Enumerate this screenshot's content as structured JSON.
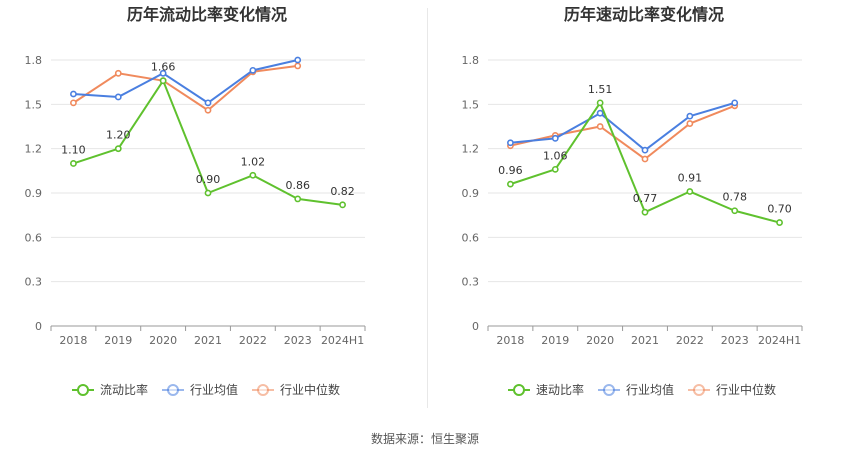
{
  "colors": {
    "current": "#5fc12e",
    "industry_avg": "#4a7fe0",
    "industry_median": "#f08a5d",
    "axis": "#666666",
    "grid": "#e6e6e6"
  },
  "legend": {
    "industry_avg": "行业均值",
    "industry_median": "行业中位数"
  },
  "source": "数据来源：恒生聚源",
  "chart_data": [
    {
      "type": "line",
      "title": "历年流动比率变化情况",
      "categories": [
        "2018",
        "2019",
        "2020",
        "2021",
        "2022",
        "2023",
        "2024H1"
      ],
      "yticks": [
        "0",
        "0.3",
        "0.6",
        "0.9",
        "1.2",
        "1.5",
        "1.8"
      ],
      "ylim": [
        0,
        1.8
      ],
      "grid": true,
      "legend_position": "bottom",
      "series": [
        {
          "name": "流动比率",
          "key": "current",
          "values": [
            1.1,
            1.2,
            1.66,
            0.9,
            1.02,
            0.86,
            0.82
          ],
          "labels": [
            "1.10",
            "1.20",
            "1.66",
            "0.90",
            "1.02",
            "0.86",
            "0.82"
          ]
        },
        {
          "name": "行业均值",
          "key": "industry_avg",
          "values": [
            1.57,
            1.55,
            1.71,
            1.51,
            1.73,
            1.8,
            null
          ]
        },
        {
          "name": "行业中位数",
          "key": "industry_median",
          "values": [
            1.51,
            1.71,
            1.66,
            1.46,
            1.72,
            1.76,
            null
          ]
        }
      ]
    },
    {
      "type": "line",
      "title": "历年速动比率变化情况",
      "categories": [
        "2018",
        "2019",
        "2020",
        "2021",
        "2022",
        "2023",
        "2024H1"
      ],
      "yticks": [
        "0",
        "0.3",
        "0.6",
        "0.9",
        "1.2",
        "1.5",
        "1.8"
      ],
      "ylim": [
        0,
        1.8
      ],
      "grid": true,
      "legend_position": "bottom",
      "series": [
        {
          "name": "速动比率",
          "key": "current",
          "values": [
            0.96,
            1.06,
            1.51,
            0.77,
            0.91,
            0.78,
            0.7
          ],
          "labels": [
            "0.96",
            "1.06",
            "1.51",
            "0.77",
            "0.91",
            "0.78",
            "0.70"
          ]
        },
        {
          "name": "行业均值",
          "key": "industry_avg",
          "values": [
            1.24,
            1.27,
            1.44,
            1.19,
            1.42,
            1.51,
            null
          ]
        },
        {
          "name": "行业中位数",
          "key": "industry_median",
          "values": [
            1.22,
            1.29,
            1.35,
            1.13,
            1.37,
            1.49,
            null
          ]
        }
      ]
    }
  ]
}
